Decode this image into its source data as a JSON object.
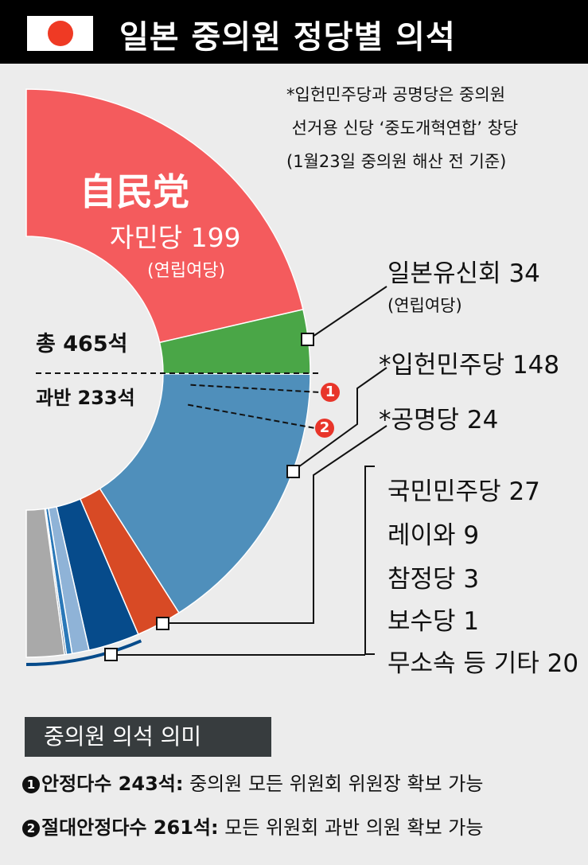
{
  "header": {
    "title": "일본 중의원 정당별 의석",
    "flag_icon": "japan-flag-icon"
  },
  "note": "*입헌민주당과 공명당은 중의원\n 선거용 신당 ‘중도개혁연합’ 창당\n(1월23일 중의원 해산 전 기준)",
  "chart_data": {
    "type": "pie",
    "subtype": "half-donut",
    "total_label": "총 465석",
    "total": 465,
    "majority_label": "과반 233석",
    "majority": 233,
    "thresholds": [
      {
        "marker": "1",
        "value": 243
      },
      {
        "marker": "2",
        "value": 261
      }
    ],
    "slices": [
      {
        "name": "자민당",
        "value": 199,
        "label": "자민당 199",
        "kanji": "自民党",
        "note": "(연립여당)",
        "color": "#f45b5d"
      },
      {
        "name": "일본유신회",
        "value": 34,
        "label": "일본유신회 34",
        "note": "(연립여당)",
        "color": "#4aa647"
      },
      {
        "name": "입헌민주당",
        "value": 148,
        "label": "*입헌민주당 148",
        "color": "#4f8fbb"
      },
      {
        "name": "공명당",
        "value": 24,
        "label": "*공명당 24",
        "color": "#d84a25"
      },
      {
        "name": "국민민주당",
        "value": 27,
        "label": "국민민주당 27",
        "color": "#064b8b"
      },
      {
        "name": "레이와",
        "value": 9,
        "label": "레이와 9",
        "color": "#8fb3d7"
      },
      {
        "name": "참정당",
        "value": 3,
        "label": "참정당 3",
        "color": "#2a78b8"
      },
      {
        "name": "보수당",
        "value": 1,
        "label": "보수당 1",
        "color": "#5e7892"
      },
      {
        "name": "무소속 등 기타",
        "value": 20,
        "label": "무소속 등 기타 20",
        "color": "#a9a9a9"
      }
    ]
  },
  "legend": {
    "title": "중의원 의석 의미",
    "rows": [
      {
        "marker": "1",
        "bold": "안정다수 243석:",
        "text": " 중의원 모든 위원회 위원장 확보 가능"
      },
      {
        "marker": "2",
        "bold": "절대안정다수 261석:",
        "text": " 모든 위원회 과반 의원 확보 가능"
      }
    ]
  }
}
